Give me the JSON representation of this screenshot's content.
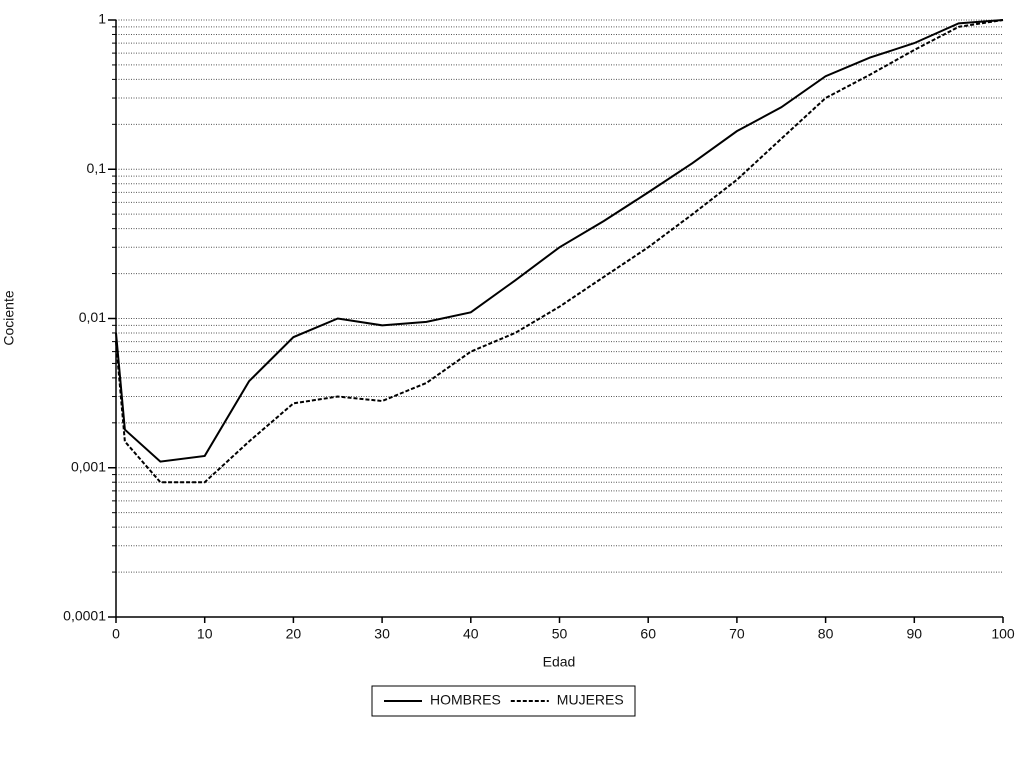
{
  "chart_data": {
    "type": "line",
    "x_label": "Edad",
    "y_label": "Cociente",
    "x": [
      0,
      1,
      5,
      10,
      15,
      20,
      25,
      30,
      35,
      40,
      45,
      50,
      55,
      60,
      65,
      70,
      75,
      80,
      85,
      90,
      95,
      100
    ],
    "series": [
      {
        "name": "HOMBRES",
        "color": "#000000",
        "style": "solid",
        "values": [
          0.008,
          0.0018,
          0.0011,
          0.0012,
          0.0038,
          0.0075,
          0.01,
          0.009,
          0.0095,
          0.011,
          0.018,
          0.03,
          0.045,
          0.07,
          0.11,
          0.18,
          0.26,
          0.42,
          0.56,
          0.7,
          0.95,
          1.0
        ]
      },
      {
        "name": "MUJERES",
        "color": "#000000",
        "style": "dotted",
        "values": [
          0.007,
          0.0015,
          0.0008,
          0.0008,
          0.0015,
          0.0027,
          0.003,
          0.0028,
          0.0037,
          0.006,
          0.008,
          0.012,
          0.019,
          0.03,
          0.05,
          0.085,
          0.16,
          0.3,
          0.43,
          0.63,
          0.9,
          1.0
        ]
      }
    ],
    "xlim": [
      0,
      100
    ],
    "xticks": [
      0,
      10,
      20,
      30,
      40,
      50,
      60,
      70,
      80,
      90,
      100
    ],
    "ylim": [
      0.0001,
      1
    ],
    "log_y": true,
    "yticks": [
      {
        "value": 0.0001,
        "label": "0,0001"
      },
      {
        "value": 0.001,
        "label": "0,001"
      },
      {
        "value": 0.01,
        "label": "0,01"
      },
      {
        "value": 0.1,
        "label": "0,1"
      },
      1
    ],
    "grid": true,
    "minor_grid": true,
    "legend": "bottom"
  }
}
